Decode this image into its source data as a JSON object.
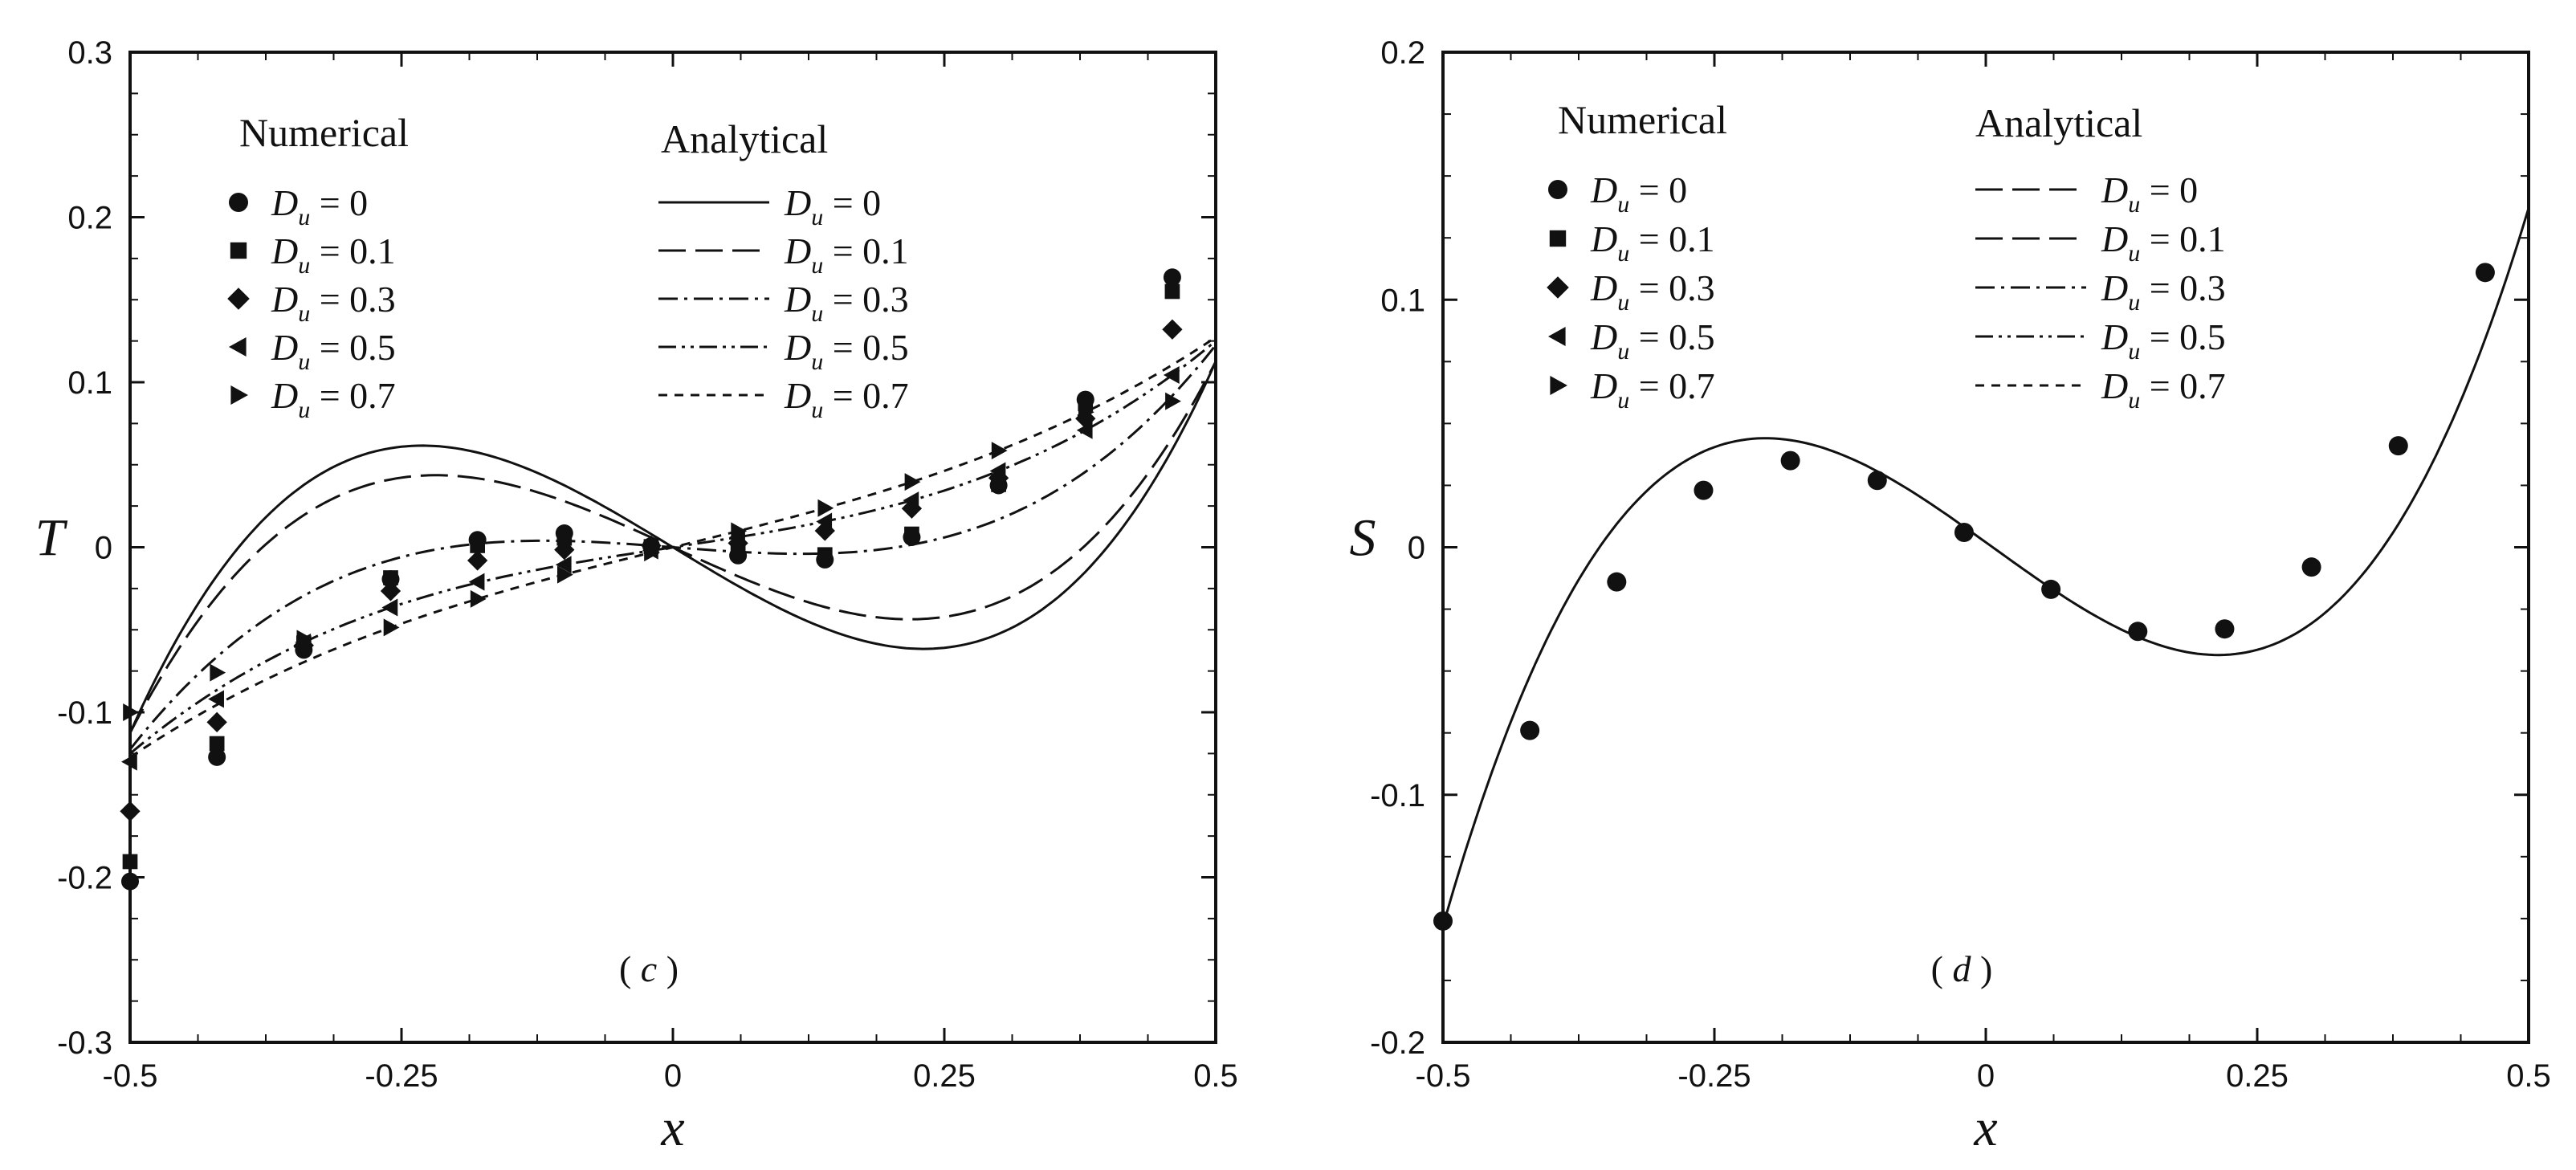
{
  "chart_data": [
    {
      "type": "line",
      "panel": "c",
      "panel_label": "c",
      "xlabel": "x",
      "ylabel": "T",
      "xlim": [
        -0.5,
        0.5
      ],
      "ylim": [
        -0.3,
        0.3
      ],
      "xticks": [
        -0.5,
        -0.25,
        0,
        0.25,
        0.5
      ],
      "xtick_labels": [
        "-0.5",
        "-0.25",
        "0",
        "0.25",
        "0.5"
      ],
      "yticks": [
        -0.3,
        -0.2,
        -0.1,
        0,
        0.1,
        0.2,
        0.3
      ],
      "ytick_labels": [
        "-0.3",
        "-0.2",
        "-0.1",
        "0",
        "0.1",
        "0.2",
        "0.3"
      ],
      "legend": {
        "numerical_title": "Numerical",
        "analytical_title": "Analytical",
        "symbol": "D",
        "subscript": "u",
        "entries": [
          "=  0",
          "= 0.1",
          "= 0.3",
          "= 0.5",
          "= 0.7"
        ]
      },
      "series": [
        {
          "name": "Du = 0",
          "marker": "circle",
          "line": "solid",
          "coeffs": [
            0,
            -0.4,
            0,
            2.5
          ],
          "points": [
            [
              -0.5,
              -0.2025
            ],
            [
              -0.42,
              -0.1272
            ],
            [
              -0.34,
              -0.0622
            ],
            [
              -0.26,
              -0.0193
            ],
            [
              -0.18,
              0.0045
            ],
            [
              -0.1,
              0.0085
            ],
            [
              -0.02,
              0.0008
            ],
            [
              0.06,
              -0.005
            ],
            [
              0.14,
              -0.0075
            ],
            [
              0.22,
              0.0061
            ],
            [
              0.3,
              0.0375
            ],
            [
              0.38,
              0.0895
            ],
            [
              0.46,
              0.1636
            ]
          ]
        },
        {
          "name": "Du = 0.1",
          "marker": "square",
          "line": "longdash",
          "coeffs": [
            0,
            -0.3,
            0,
            2.1
          ],
          "points": [
            [
              -0.5,
              -0.1905
            ],
            [
              -0.42,
              -0.119
            ],
            [
              -0.34,
              -0.058
            ],
            [
              -0.26,
              -0.0185
            ],
            [
              -0.18,
              0.001
            ],
            [
              -0.1,
              0.0055
            ],
            [
              -0.02,
              0.0004
            ],
            [
              0.06,
              -0.003
            ],
            [
              0.14,
              -0.0045
            ],
            [
              0.22,
              0.008
            ],
            [
              0.3,
              0.038
            ],
            [
              0.38,
              0.087
            ],
            [
              0.46,
              0.155
            ]
          ]
        },
        {
          "name": "Du = 0.3",
          "marker": "diamond",
          "line": "dashdot",
          "coeffs": [
            0,
            -0.05,
            0,
            1.18
          ],
          "points": [
            [
              -0.5,
              -0.16
            ],
            [
              -0.42,
              -0.106
            ],
            [
              -0.34,
              -0.0595
            ],
            [
              -0.26,
              -0.0265
            ],
            [
              -0.18,
              -0.008
            ],
            [
              -0.1,
              -0.0015
            ],
            [
              -0.02,
              0.001
            ],
            [
              0.06,
              0.0025
            ],
            [
              0.14,
              0.01
            ],
            [
              0.22,
              0.0235
            ],
            [
              0.3,
              0.042
            ],
            [
              0.38,
              0.078
            ],
            [
              0.46,
              0.132
            ]
          ]
        },
        {
          "name": "Du = 0.5",
          "marker": "triangle-left",
          "line": "dashdotdot",
          "coeffs": [
            0,
            0.1,
            0,
            0.6
          ],
          "points": [
            [
              -0.5,
              -0.13
            ],
            [
              -0.42,
              -0.092
            ],
            [
              -0.34,
              -0.0576
            ],
            [
              -0.26,
              -0.0365
            ],
            [
              -0.18,
              -0.021
            ],
            [
              -0.1,
              -0.0106
            ],
            [
              -0.02,
              -0.002
            ],
            [
              0.06,
              0.0061
            ],
            [
              0.14,
              0.0156
            ],
            [
              0.22,
              0.0284
            ],
            [
              0.3,
              0.0462
            ],
            [
              0.38,
              0.0709
            ],
            [
              0.46,
              0.1044
            ]
          ]
        },
        {
          "name": "Du = 0.7",
          "marker": "triangle-right",
          "line": "shortdash",
          "coeffs": [
            0,
            0.162,
            0,
            0.37
          ],
          "points": [
            [
              -0.5,
              -0.1
            ],
            [
              -0.42,
              -0.076
            ],
            [
              -0.34,
              -0.0554
            ],
            [
              -0.26,
              -0.0486
            ],
            [
              -0.18,
              -0.0313
            ],
            [
              -0.1,
              -0.0166
            ],
            [
              -0.02,
              -0.0032
            ],
            [
              0.06,
              0.0098
            ],
            [
              0.14,
              0.0237
            ],
            [
              0.22,
              0.0396
            ],
            [
              0.3,
              0.0586
            ],
            [
              0.38,
              0.0819
            ],
            [
              0.46,
              0.0885
            ]
          ]
        }
      ]
    },
    {
      "type": "line",
      "panel": "d",
      "panel_label": "d",
      "xlabel": "x",
      "ylabel": "S",
      "xlim": [
        -0.5,
        0.5
      ],
      "ylim": [
        -0.2,
        0.2
      ],
      "xticks": [
        -0.5,
        -0.25,
        0,
        0.25,
        0.5
      ],
      "xtick_labels": [
        "-0.5",
        "-0.25",
        "0",
        "0.25",
        "0.5"
      ],
      "yticks": [
        -0.2,
        -0.1,
        0,
        0.1,
        0.2
      ],
      "ytick_labels": [
        "-0.2",
        "-0.1",
        "0",
        "0.1",
        "0.2"
      ],
      "legend": {
        "numerical_title": "Numerical",
        "analytical_title": "Analytical",
        "symbol": "D",
        "subscript": "u",
        "entries": [
          "=  0",
          "= 0.1",
          "= 0.3",
          "= 0.5",
          "= 0.7"
        ],
        "numerical_markers": [
          "circle",
          "square",
          "diamond",
          "triangle-left",
          "triangle-right"
        ],
        "analytical_styles": [
          "longdash",
          "longdash",
          "dashdot",
          "dashdotdot",
          "shortdash"
        ]
      },
      "curve": {
        "name": "S (all Du)",
        "coeffs": [
          0.002,
          -0.315,
          -0.04,
          2.42
        ]
      },
      "points": [
        [
          -0.5,
          -0.151
        ],
        [
          -0.42,
          -0.074
        ],
        [
          -0.34,
          -0.014
        ],
        [
          -0.26,
          0.023
        ],
        [
          -0.18,
          0.035
        ],
        [
          -0.1,
          0.027
        ],
        [
          -0.02,
          0.006
        ],
        [
          0.06,
          -0.017
        ],
        [
          0.14,
          -0.034
        ],
        [
          0.22,
          -0.033
        ],
        [
          0.3,
          -0.008
        ],
        [
          0.38,
          0.041
        ],
        [
          0.46,
          0.111
        ]
      ]
    }
  ]
}
